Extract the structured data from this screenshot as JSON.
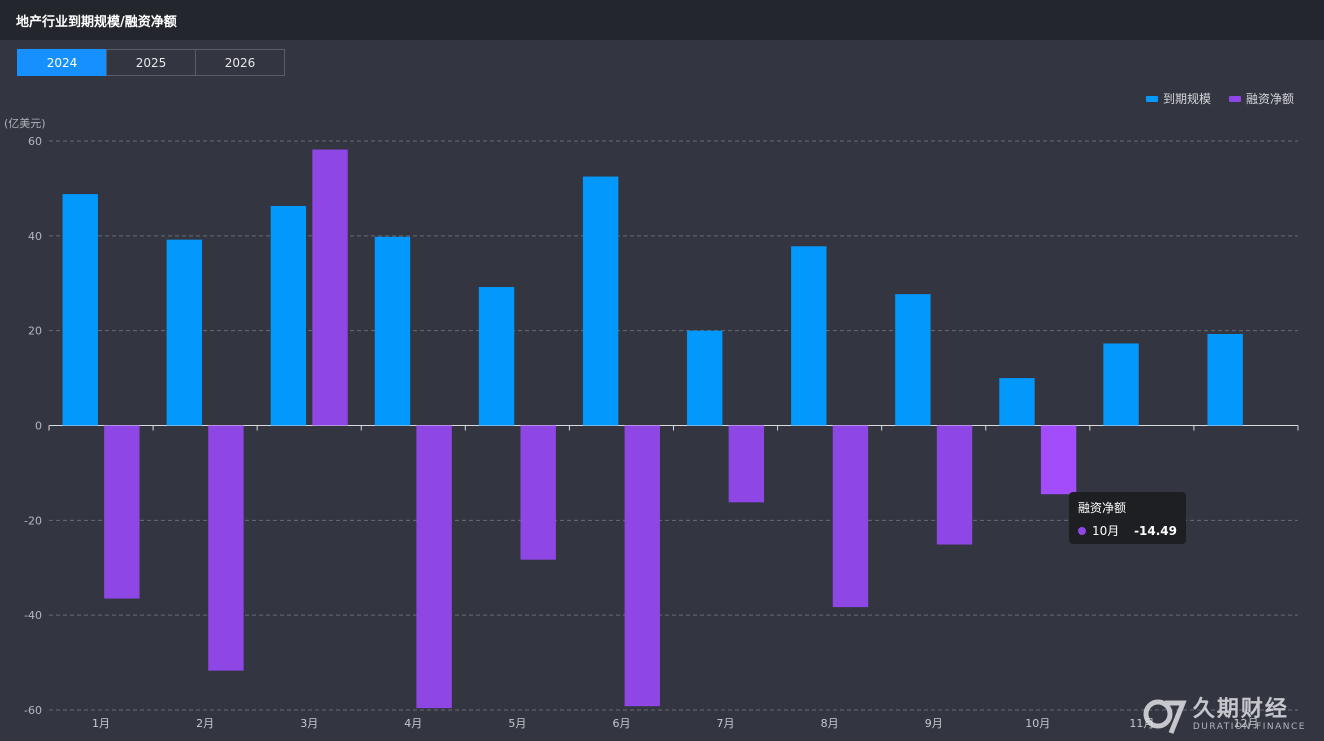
{
  "header": {
    "title": "地产行业到期规模/融资净额"
  },
  "tabs": [
    {
      "label": "2024",
      "active": true
    },
    {
      "label": "2025",
      "active": false
    },
    {
      "label": "2026",
      "active": false
    }
  ],
  "unit_label": "(亿美元)",
  "tooltip": {
    "title": "融资净额",
    "category": "10月",
    "value": "-14.49"
  },
  "watermark": {
    "cn": "久期财经",
    "en": "DURATION FINANCE"
  },
  "colors": {
    "maturity": "#0399fc",
    "net_financing": "#8e47e4",
    "highlight": "#a24cfb",
    "background": "#333640"
  },
  "chart_data": {
    "type": "bar",
    "categories": [
      "1月",
      "2月",
      "3月",
      "4月",
      "5月",
      "6月",
      "7月",
      "8月",
      "9月",
      "10月",
      "11月",
      "12月"
    ],
    "series": [
      {
        "name": "到期规模",
        "values": [
          48.8,
          39.2,
          46.3,
          39.8,
          29.2,
          52.5,
          20.0,
          37.8,
          27.7,
          10.0,
          17.3,
          19.3
        ]
      },
      {
        "name": "融资净额",
        "values": [
          -36.5,
          -51.7,
          58.2,
          -59.6,
          -28.3,
          -59.2,
          -16.2,
          -38.3,
          -25.1,
          -14.49,
          null,
          null
        ]
      }
    ],
    "yticks": [
      60,
      40,
      20,
      0,
      -20,
      -40,
      -60
    ],
    "ylim": [
      -60,
      60
    ],
    "grid": true,
    "legend_position": "top-right",
    "highlighted": {
      "series": 1,
      "index": 9
    }
  }
}
